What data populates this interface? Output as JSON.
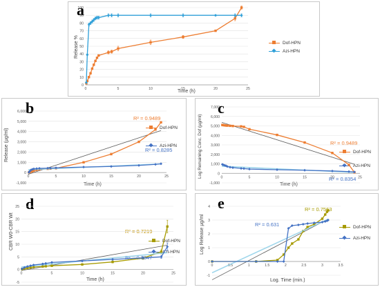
{
  "chart_data": [
    {
      "panel": "a",
      "type": "line",
      "ylabel": "Release %",
      "xlabel": "Time (h)",
      "xlim": [
        0,
        25
      ],
      "ylim": [
        0,
        100
      ],
      "xticks": [
        "0",
        "5",
        "10",
        "15",
        "20",
        "25"
      ],
      "yticks": [
        "0",
        "10",
        "20",
        "30",
        "40",
        "50",
        "60",
        "70",
        "80",
        "90",
        "100"
      ],
      "legend": "right",
      "series": [
        {
          "name": "Dof-HPN",
          "color": "#ed7d31",
          "marker": "square",
          "x": [
            0.1,
            0.25,
            0.5,
            0.75,
            1,
            1.25,
            1.5,
            1.75,
            2,
            3.5,
            4,
            5,
            10,
            15,
            20,
            23,
            24
          ],
          "y": [
            2,
            5,
            10,
            15,
            21,
            26,
            31,
            35,
            38,
            42,
            43,
            47,
            55,
            62,
            70,
            86,
            100
          ],
          "err": [
            1,
            1,
            1,
            1,
            1,
            1,
            1,
            1,
            1,
            2,
            2,
            3,
            3,
            2,
            1,
            3,
            2
          ]
        },
        {
          "name": "Azi-HPN",
          "color": "#2e9fd8",
          "marker": "diamond",
          "x": [
            0.1,
            0.25,
            0.5,
            0.75,
            1,
            1.25,
            1.5,
            1.75,
            2,
            3.5,
            4,
            5,
            10,
            15,
            20,
            23,
            24
          ],
          "y": [
            3,
            39,
            78,
            80,
            82,
            84,
            86,
            87,
            87,
            90,
            90,
            90,
            90,
            90,
            90,
            90,
            90
          ],
          "err": [
            1,
            1,
            2,
            2,
            2,
            2,
            2,
            2,
            2,
            2,
            2,
            2,
            2,
            2,
            1,
            2,
            2
          ]
        }
      ]
    },
    {
      "panel": "b",
      "type": "line",
      "ylabel": "Release (µg/ml)",
      "xlabel": "Time (h)",
      "xlim": [
        0,
        25
      ],
      "ylim": [
        -1000,
        6000
      ],
      "xticks": [
        "0",
        "5",
        "10",
        "15",
        "20",
        "25"
      ],
      "yticks": [
        "-1,000",
        "0",
        "1,000",
        "2,000",
        "3,000",
        "4,000",
        "5,000",
        "6,000"
      ],
      "legend": "right",
      "annotations": [
        {
          "text": "R² = 0.9489",
          "color": "#ed7d31"
        },
        {
          "text": "R² = 0.8285",
          "color": "#4472c4"
        }
      ],
      "series": [
        {
          "name": "Dof-HPN",
          "color": "#ed7d31",
          "marker": "square",
          "x": [
            0.1,
            0.25,
            0.5,
            0.75,
            1,
            1.5,
            2,
            3.5,
            4,
            5,
            10,
            15,
            20,
            23,
            24
          ],
          "y": [
            20,
            50,
            100,
            150,
            200,
            260,
            310,
            370,
            390,
            420,
            1000,
            1800,
            3000,
            4200,
            4900
          ]
        },
        {
          "name": "Azi-HPN",
          "color": "#4472c4",
          "marker": "diamond",
          "x": [
            0.1,
            0.25,
            0.5,
            0.75,
            1,
            1.5,
            2,
            3.5,
            4,
            5,
            10,
            15,
            20,
            23,
            24
          ],
          "y": [
            30,
            120,
            260,
            320,
            360,
            390,
            410,
            430,
            440,
            460,
            540,
            600,
            700,
            800,
            860
          ]
        }
      ]
    },
    {
      "panel": "c",
      "type": "line",
      "ylabel": "Log Remaining Conc. Dof (µg/ml)",
      "xlabel": "Time (h)",
      "xlim": [
        0,
        25
      ],
      "ylim": [
        -1000,
        7000
      ],
      "xticks": [
        "0",
        "5",
        "10",
        "15",
        "20",
        "25"
      ],
      "yticks": [
        "-1,000",
        "0",
        "1,000",
        "2,000",
        "3,000",
        "4,000",
        "5,000",
        "6,000",
        "7,000"
      ],
      "legend": "right",
      "annotations": [
        {
          "text": "R² = 0.9489",
          "color": "#ed7d31"
        },
        {
          "text": "R² = 0.8354",
          "color": "#4472c4"
        }
      ],
      "series": [
        {
          "name": "Dof-HPN",
          "color": "#ed7d31",
          "marker": "square",
          "x": [
            0.1,
            0.25,
            0.5,
            0.75,
            1,
            1.5,
            2,
            3.5,
            4,
            5,
            10,
            15,
            20,
            23,
            24
          ],
          "y": [
            5100,
            5080,
            5060,
            5040,
            5030,
            5010,
            4990,
            4950,
            4900,
            4650,
            4050,
            3250,
            2150,
            900,
            100
          ]
        },
        {
          "name": "Azi-HPN",
          "color": "#4472c4",
          "marker": "diamond",
          "x": [
            0.1,
            0.25,
            0.5,
            0.75,
            1,
            1.5,
            2,
            3.5,
            4,
            5,
            10,
            15,
            20,
            23,
            24
          ],
          "y": [
            950,
            900,
            850,
            800,
            720,
            650,
            600,
            520,
            500,
            450,
            380,
            330,
            250,
            180,
            150
          ]
        }
      ]
    },
    {
      "panel": "d",
      "type": "line",
      "ylabel": "CBR W0-CBR Wt",
      "xlabel": "Time (h)",
      "xlim": [
        0,
        25
      ],
      "ylim": [
        -5,
        25
      ],
      "xticks": [
        "0",
        "5",
        "10",
        "15",
        "20",
        "25"
      ],
      "yticks": [
        "-5",
        "0",
        "5",
        "10",
        "15",
        "20",
        "25"
      ],
      "legend": "right",
      "annotations": [
        {
          "text": "R² = 0.7219",
          "color": "#c09000"
        },
        {
          "text": "R² = 0.8347",
          "color": "#4472c4"
        }
      ],
      "series": [
        {
          "name": "Dof-HPN",
          "color": "#a69a00",
          "marker": "square",
          "x": [
            0.1,
            0.5,
            1,
            1.5,
            2,
            3.5,
            4,
            5,
            10,
            15,
            20,
            23,
            24
          ],
          "y": [
            0.2,
            0.4,
            0.6,
            0.8,
            1,
            1.2,
            1.3,
            1.5,
            2,
            3,
            4.5,
            7,
            17
          ],
          "err": [
            0.2,
            0.2,
            0.2,
            0.2,
            0.2,
            0.3,
            0.3,
            0.3,
            0.3,
            0.4,
            0.5,
            0.8,
            2.5
          ]
        },
        {
          "name": "Azi-HPN",
          "color": "#4472c4",
          "marker": "diamond",
          "x": [
            0.1,
            0.5,
            1,
            1.5,
            2,
            3.5,
            4,
            5,
            10,
            15,
            20,
            23,
            24
          ],
          "y": [
            0.3,
            0.8,
            1.2,
            1.5,
            1.8,
            2.2,
            2.4,
            2.8,
            3.4,
            4,
            4.6,
            5,
            9
          ],
          "err": [
            0.2,
            0.2,
            0.2,
            0.2,
            0.2,
            0.3,
            0.3,
            0.3,
            0.3,
            0.3,
            0.4,
            0.6,
            1.5
          ]
        }
      ]
    },
    {
      "panel": "e",
      "type": "line",
      "ylabel": "Log Release µg/ml",
      "xlabel": "Log. Time (min.)",
      "xlim": [
        0,
        3.5
      ],
      "ylim": [
        -1,
        4
      ],
      "xticks": [
        "0",
        "0.5",
        "1",
        "1.5",
        "2",
        "2.5",
        "3",
        "3.5"
      ],
      "yticks": [
        "-1",
        "0",
        "1",
        "2",
        "3",
        "4"
      ],
      "legend": "right",
      "annotations": [
        {
          "text": "R² = 0.7563",
          "color": "#a69a00"
        },
        {
          "text": "R² = 0.631",
          "color": "#4472c4"
        }
      ],
      "series": [
        {
          "name": "Dof-HPN",
          "color": "#a69a00",
          "marker": "square",
          "x": [
            0,
            1.2,
            1.78,
            1.95,
            2.08,
            2.18,
            2.35,
            2.48,
            2.6,
            2.78,
            3.0,
            3.08,
            3.13,
            3.16
          ],
          "y": [
            0,
            0,
            0.1,
            0.5,
            1.0,
            1.3,
            1.6,
            2.2,
            2.5,
            2.7,
            3.1,
            3.4,
            3.6,
            3.7
          ]
        },
        {
          "name": "Azi-HPN",
          "color": "#4472c4",
          "marker": "diamond",
          "x": [
            0,
            1.2,
            1.78,
            1.95,
            2.08,
            2.18,
            2.35,
            2.48,
            2.6,
            2.78,
            3.0,
            3.08,
            3.13,
            3.16
          ],
          "y": [
            0,
            0,
            0,
            0,
            2.4,
            2.6,
            2.65,
            2.7,
            2.75,
            2.8,
            2.85,
            2.9,
            2.95,
            3.0
          ]
        }
      ]
    }
  ]
}
